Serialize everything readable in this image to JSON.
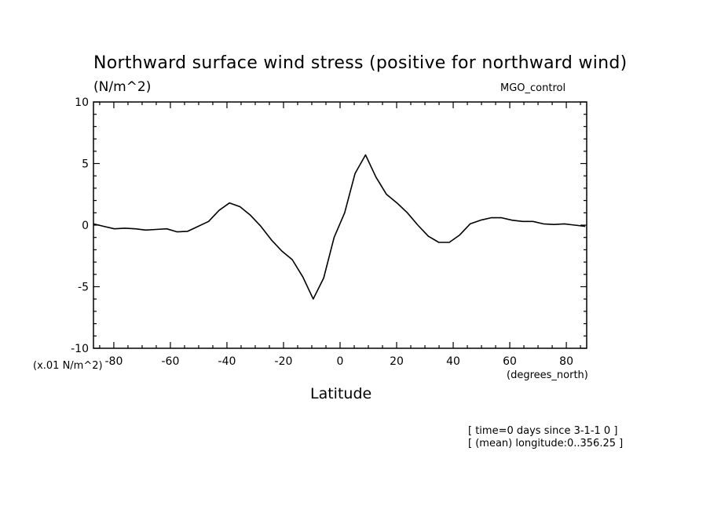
{
  "header": {
    "title": "Northward surface wind stress (positive for northward wind)",
    "units": "(N/m^2)",
    "run_name": "MGO_control"
  },
  "axes": {
    "y_scale_note": "(x.01 N/m^2)",
    "x_units": "(degrees_north)",
    "x_label": "Latitude"
  },
  "footer": {
    "line1": "[ time=0 days since 3-1-1 0 ]",
    "line2": "[ (mean) longitude:0..356.25 ]"
  },
  "chart_data": {
    "type": "line",
    "title": "Northward surface wind stress (positive for northward wind)",
    "xlabel": "Latitude",
    "ylabel": "(N/m^2)",
    "xlim": [
      -87.2,
      87.2
    ],
    "ylim": [
      -10,
      10
    ],
    "x_ticks": [
      -80,
      -60,
      -40,
      -20,
      0,
      20,
      40,
      60,
      80
    ],
    "y_ticks": [
      -10,
      -5,
      0,
      5,
      10
    ],
    "x_tick_labels": [
      "-80",
      "-60",
      "-40",
      "-20",
      "0",
      "20",
      "40",
      "60",
      "80"
    ],
    "y_tick_labels": [
      "-10",
      "-5",
      "0",
      "5",
      "10"
    ],
    "series": [
      {
        "x": [
          -87.2,
          -83.5,
          -79.8,
          -76.1,
          -72.4,
          -68.7,
          -65.0,
          -61.3,
          -57.6,
          -53.9,
          -50.2,
          -46.5,
          -42.8,
          -39.1,
          -35.4,
          -31.7,
          -28.0,
          -24.3,
          -20.6,
          -16.9,
          -13.2,
          -9.5,
          -5.8,
          -2.1,
          1.6,
          5.3,
          9.0,
          12.7,
          16.4,
          20.1,
          23.8,
          27.5,
          31.2,
          34.9,
          38.6,
          42.3,
          46.0,
          49.7,
          53.4,
          57.1,
          60.8,
          64.5,
          68.2,
          71.9,
          75.6,
          79.3,
          83.0,
          86.7
        ],
        "values": [
          0.1,
          -0.1,
          -0.3,
          -0.25,
          -0.3,
          -0.4,
          -0.35,
          -0.3,
          -0.55,
          -0.5,
          -0.1,
          0.3,
          1.2,
          1.8,
          1.5,
          0.8,
          -0.1,
          -1.2,
          -2.1,
          -2.8,
          -4.2,
          -6.0,
          -4.3,
          -1.0,
          1.0,
          4.2,
          5.7,
          3.9,
          2.5,
          1.8,
          1.0,
          0.0,
          -0.9,
          -1.4,
          -1.4,
          -0.8,
          0.1,
          0.4,
          0.6,
          0.6,
          0.4,
          0.3,
          0.3,
          0.1,
          0.05,
          0.1,
          0.0,
          -0.1
        ]
      }
    ],
    "grid": false,
    "legend": "none"
  }
}
